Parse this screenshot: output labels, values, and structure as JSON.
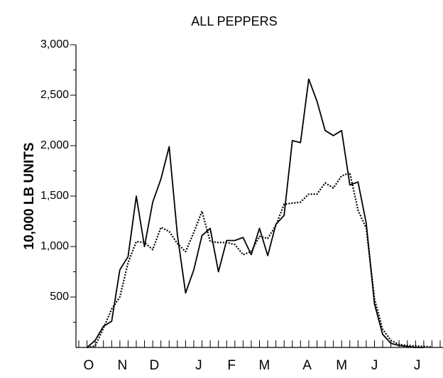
{
  "chart_data": {
    "type": "line",
    "title": "ALL PEPPERS",
    "y_label": "10,000 LB UNITS",
    "x": [
      1,
      2,
      3,
      4,
      5,
      6,
      7,
      8,
      9,
      10,
      11,
      12,
      13,
      14,
      15,
      16,
      17,
      18,
      19,
      20,
      21,
      22,
      23,
      24,
      25,
      26,
      27,
      28,
      29,
      30,
      31,
      32,
      33,
      34,
      35,
      36,
      37,
      38,
      39,
      40,
      41,
      42,
      43
    ],
    "series": [
      {
        "color": "#000000",
        "style": "solid",
        "values": [
          0,
          70,
          210,
          260,
          770,
          900,
          1500,
          1000,
          1440,
          1670,
          1990,
          1120,
          540,
          770,
          1110,
          1180,
          750,
          1060,
          1060,
          1090,
          920,
          1180,
          910,
          1220,
          1310,
          2050,
          2030,
          2660,
          2440,
          2150,
          2100,
          2150,
          1610,
          1640,
          1230,
          430,
          130,
          40,
          20,
          10,
          0,
          0,
          null
        ]
      },
      {
        "color": "#000000",
        "style": "dotted",
        "values": [
          0,
          15,
          190,
          380,
          500,
          840,
          1050,
          1040,
          970,
          1190,
          1150,
          1030,
          950,
          1140,
          1350,
          1050,
          1040,
          1040,
          1020,
          920,
          950,
          1100,
          1080,
          1210,
          1420,
          1430,
          1440,
          1520,
          1520,
          1630,
          1580,
          1700,
          1730,
          1360,
          1180,
          480,
          180,
          70,
          30,
          20,
          15,
          10,
          5
        ]
      }
    ],
    "xlim": [
      0,
      44
    ],
    "xticks": [
      {
        "value": 1.2,
        "label": "O"
      },
      {
        "value": 5.3,
        "label": "N"
      },
      {
        "value": 9.2,
        "label": "D"
      },
      {
        "value": 14.6,
        "label": "J"
      },
      {
        "value": 18.6,
        "label": "F"
      },
      {
        "value": 22.6,
        "label": "M"
      },
      {
        "value": 27.8,
        "label": "A"
      },
      {
        "value": 32,
        "label": "M"
      },
      {
        "value": 36,
        "label": "J"
      },
      {
        "value": 41.2,
        "label": "J"
      }
    ],
    "xminorticks": [
      0,
      1,
      2,
      3,
      4,
      5,
      6,
      7,
      8,
      9,
      10,
      11,
      12,
      13,
      14,
      15,
      16,
      17,
      18,
      19,
      20,
      21,
      22,
      23,
      24,
      25,
      26,
      27,
      28,
      29,
      30,
      31,
      32,
      33,
      34,
      35,
      36,
      37,
      38,
      39,
      40,
      41,
      42,
      43,
      44
    ],
    "ylim": [
      0,
      3000
    ],
    "yticks": [
      {
        "value": 500,
        "label": "500"
      },
      {
        "value": 1000,
        "label": "1,000"
      },
      {
        "value": 1500,
        "label": "1,500"
      },
      {
        "value": 2000,
        "label": "2,000"
      },
      {
        "value": 2500,
        "label": "2,500"
      },
      {
        "value": 3000,
        "label": "3,000"
      }
    ],
    "yminorticks": [
      250,
      750,
      1250,
      1750,
      2250,
      2750
    ]
  }
}
